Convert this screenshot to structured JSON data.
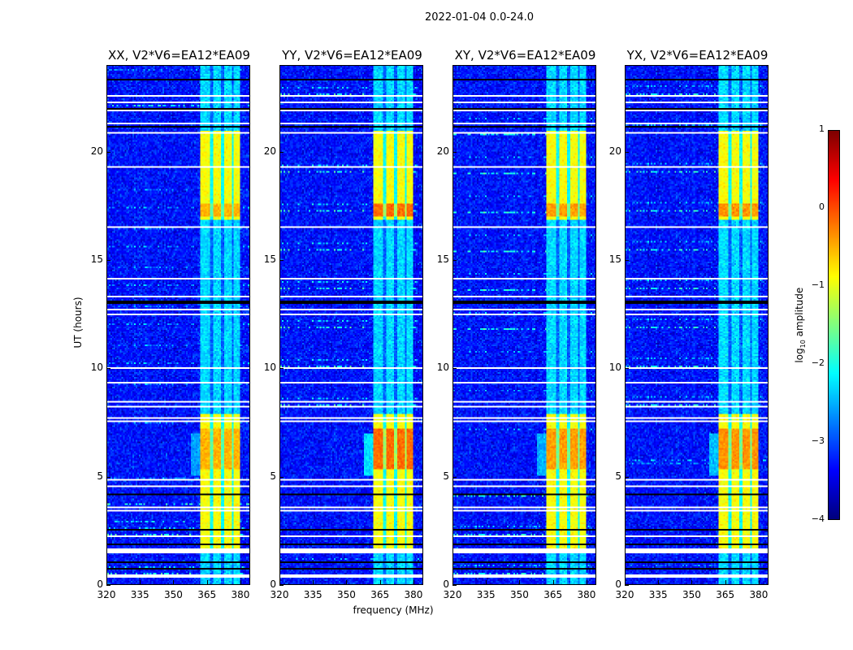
{
  "suptitle": "2022-01-04 0.0-24.0",
  "chart_data": {
    "type": "heatmap",
    "title": "2022-01-04 0.0-24.0",
    "xlabel": "frequency (MHz)",
    "ylabel": "UT (hours)",
    "xlim": [
      320,
      384.4
    ],
    "ylim": [
      0,
      24
    ],
    "xticks": [
      320,
      335,
      350,
      365,
      380
    ],
    "yticks": [
      0,
      5,
      10,
      15,
      20
    ],
    "panels": [
      {
        "title": "XX, V2*V6=EA12*EA09",
        "peak_boost": 0.0
      },
      {
        "title": "YY, V2*V6=EA12*EA09",
        "peak_boost": 0.35
      },
      {
        "title": "XY, V2*V6=EA12*EA09",
        "peak_boost": 0.1
      },
      {
        "title": "YX, V2*V6=EA12*EA09",
        "peak_boost": 0.15
      }
    ],
    "colorbar": {
      "label_main": "log",
      "label_sub": "10",
      "label_rest": " amplitude",
      "range": [
        -4,
        1
      ],
      "ticks": [
        1,
        0,
        -1,
        -2,
        -3,
        -4
      ],
      "tick_labels": [
        "1",
        "0",
        "−1",
        "−2",
        "−3",
        "−4"
      ],
      "colormap": "jet"
    },
    "background_level": -3.3,
    "rfi_band_mhz": [
      362,
      380
    ],
    "rfi_subband_gaps_mhz": [
      367.3,
      372.2,
      377.0
    ],
    "rfi_active_hours": [
      [
        1.6,
        7.9
      ],
      [
        16.9,
        21.0
      ]
    ],
    "rfi_active_level": -0.9,
    "rfi_quiet_level": -2.3,
    "flagged_white_hours": [
      [
        0.3,
        0.45
      ],
      [
        1.45,
        1.65
      ],
      [
        2.0,
        2.05
      ],
      [
        2.2,
        2.25
      ],
      [
        3.4,
        3.45
      ],
      [
        3.55,
        3.6
      ],
      [
        4.25,
        4.3
      ],
      [
        4.5,
        4.55
      ],
      [
        4.8,
        4.85
      ],
      [
        7.5,
        7.55
      ],
      [
        7.65,
        7.7
      ],
      [
        8.2,
        8.25
      ],
      [
        8.4,
        8.45
      ],
      [
        8.75,
        8.8
      ],
      [
        9.3,
        9.35
      ],
      [
        10.0,
        10.05
      ],
      [
        12.45,
        12.5
      ],
      [
        12.7,
        12.75
      ],
      [
        13.3,
        13.35
      ],
      [
        14.1,
        14.15
      ],
      [
        15.5,
        15.55
      ],
      [
        16.5,
        16.55
      ],
      [
        17.6,
        17.65
      ],
      [
        19.3,
        19.35
      ],
      [
        20.85,
        20.95
      ],
      [
        21.3,
        21.35
      ],
      [
        21.9,
        21.95
      ],
      [
        22.3,
        22.35
      ],
      [
        22.6,
        22.65
      ],
      [
        23.6,
        23.65
      ]
    ],
    "flagged_black_hours": [
      [
        0.7,
        0.75
      ],
      [
        1.0,
        1.05
      ],
      [
        1.8,
        1.85
      ],
      [
        2.5,
        2.55
      ],
      [
        4.15,
        4.2
      ],
      [
        9.5,
        9.55
      ],
      [
        13.0,
        13.1
      ],
      [
        21.15,
        21.2
      ],
      [
        22.0,
        22.05
      ],
      [
        23.35,
        23.42
      ]
    ]
  }
}
